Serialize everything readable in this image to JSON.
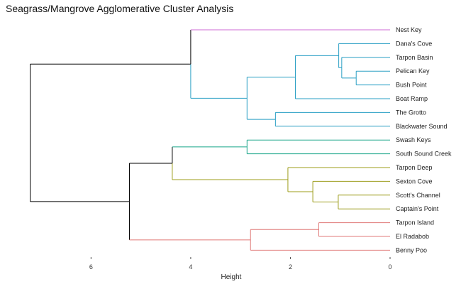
{
  "chart_data": {
    "type": "dendrogram",
    "title": "Seagrass/Mangrove Agglomerative Cluster Analysis",
    "xlabel": "Height",
    "ylabel": "",
    "xlim": [
      7.3,
      0
    ],
    "x_ticks": [
      "6",
      "4",
      "2",
      "0"
    ],
    "x_tick_values": [
      6,
      4,
      2,
      0
    ],
    "grid": false,
    "leaves": [
      "Nest Key",
      "Dana's Cove",
      "Tarpon Basin",
      "Pelican Key",
      "Bush Point",
      "Boat Ramp",
      "The Grotto",
      "Blackwater Sound",
      "Swash Keys",
      "South Sound Creek",
      "Tarpon Deep",
      "Sexton Cove",
      "Scott's Channel",
      "Captain's Point",
      "Tarpon Island",
      "El Radabob",
      "Benny Poo"
    ],
    "merges": [
      {
        "left": "Pelican Key",
        "right": "Bush Point",
        "height": 0.68
      },
      {
        "left": "Tarpon Basin",
        "right": "m1",
        "height": 0.97
      },
      {
        "left": "Dana's Cove",
        "right": "m2",
        "height": 1.03
      },
      {
        "left": "m3",
        "right": "Boat Ramp",
        "height": 1.9
      },
      {
        "left": "The Grotto",
        "right": "Blackwater Sound",
        "height": 2.3
      },
      {
        "left": "m4",
        "right": "m5",
        "height": 2.87
      },
      {
        "left": "Nest Key",
        "right": "m6",
        "height": 4.0
      },
      {
        "left": "Swash Keys",
        "right": "South Sound Creek",
        "height": 2.87
      },
      {
        "left": "Scott's Channel",
        "right": "Captain's Point",
        "height": 1.04
      },
      {
        "left": "Sexton Cove",
        "right": "m9",
        "height": 1.55
      },
      {
        "left": "Tarpon Deep",
        "right": "m10",
        "height": 2.05
      },
      {
        "left": "m8",
        "right": "m11",
        "height": 4.37
      },
      {
        "left": "Tarpon Island",
        "right": "El Radabob",
        "height": 1.43
      },
      {
        "left": "m13",
        "right": "Benny Poo",
        "height": 2.8
      },
      {
        "left": "m12",
        "right": "m14",
        "height": 5.23
      },
      {
        "left": "m7",
        "right": "m15",
        "height": 7.22
      }
    ],
    "clusters": [
      {
        "color": "#cf6bd6",
        "leaves": [
          "Nest Key"
        ],
        "merges": []
      },
      {
        "color": "#2a9fc4",
        "leaves": [
          "Dana's Cove",
          "Tarpon Basin",
          "Pelican Key",
          "Bush Point",
          "Boat Ramp",
          "The Grotto",
          "Blackwater Sound"
        ],
        "merges": [
          "m1",
          "m2",
          "m3",
          "m4",
          "m5",
          "m6"
        ]
      },
      {
        "color": "#1aa68a",
        "leaves": [
          "Swash Keys",
          "South Sound Creek"
        ],
        "merges": [
          "m8"
        ]
      },
      {
        "color": "#9c9c1a",
        "leaves": [
          "Tarpon Deep",
          "Sexton Cove",
          "Scott's Channel",
          "Captain's Point"
        ],
        "merges": [
          "m9",
          "m10",
          "m11"
        ]
      },
      {
        "color": "#e07a78",
        "leaves": [
          "Tarpon Island",
          "El Radabob",
          "Benny Poo"
        ],
        "merges": [
          "m13",
          "m14"
        ]
      }
    ],
    "trunk_color": "#000000"
  }
}
